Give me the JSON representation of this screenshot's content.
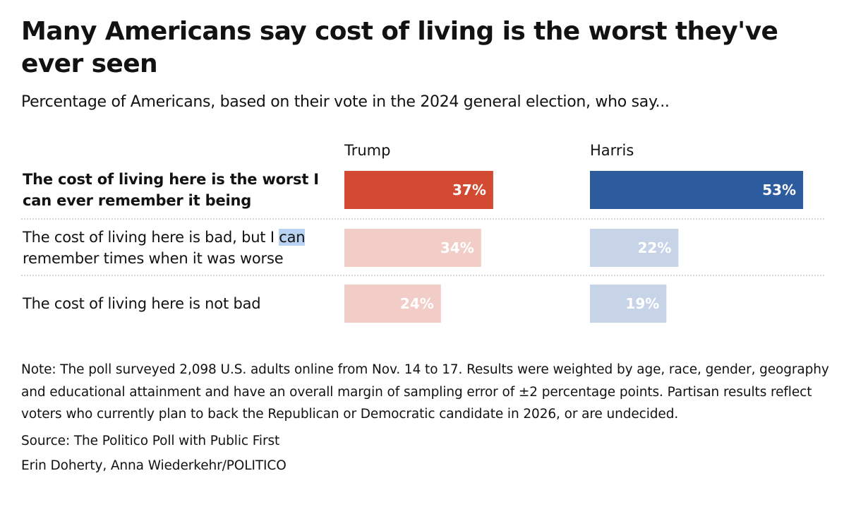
{
  "title": "Many Americans say cost of living is the worst they've ever seen",
  "subtitle": "Percentage of Americans, based on their vote in the 2024 general election, who say...",
  "chart_data": {
    "type": "bar",
    "orientation": "horizontal",
    "categories": [
      "The cost of living here is the worst I can ever remember it being",
      "The cost of living here is bad, but I can remember times when it was worse",
      "The cost of living here is not bad"
    ],
    "highlighted_category": 0,
    "series": [
      {
        "name": "Trump",
        "values": [
          37,
          34,
          24
        ],
        "color": "#d24a32",
        "muted_color": "#f2cdc7"
      },
      {
        "name": "Harris",
        "values": [
          53,
          22,
          19
        ],
        "color": "#2c5b9e",
        "muted_color": "#c7d4e8"
      }
    ],
    "value_format": "{v}%",
    "xlim": [
      0,
      100
    ]
  },
  "row_labels": {
    "row0": "The cost of living here is the worst I can ever remember it being",
    "row1_part1": "The cost of living here is bad, but I ",
    "row1_highlight": "can",
    "row1_part2": " remember times when it was worse",
    "row2": "The cost of living here is not bad"
  },
  "notes": {
    "note": "Note: The poll surveyed 2,098 U.S. adults online from Nov. 14 to 17. Results were weighted by age, race, gender, geography and educational attainment and have an overall margin of sampling error of ±2 percentage points. Partisan results reflect voters who currently plan to back the Republican or Democratic candidate in 2026, or are undecided.",
    "source": "Source: The Politico Poll with Public First",
    "credit": "Erin Doherty, Anna Wiederkehr/POLITICO"
  }
}
